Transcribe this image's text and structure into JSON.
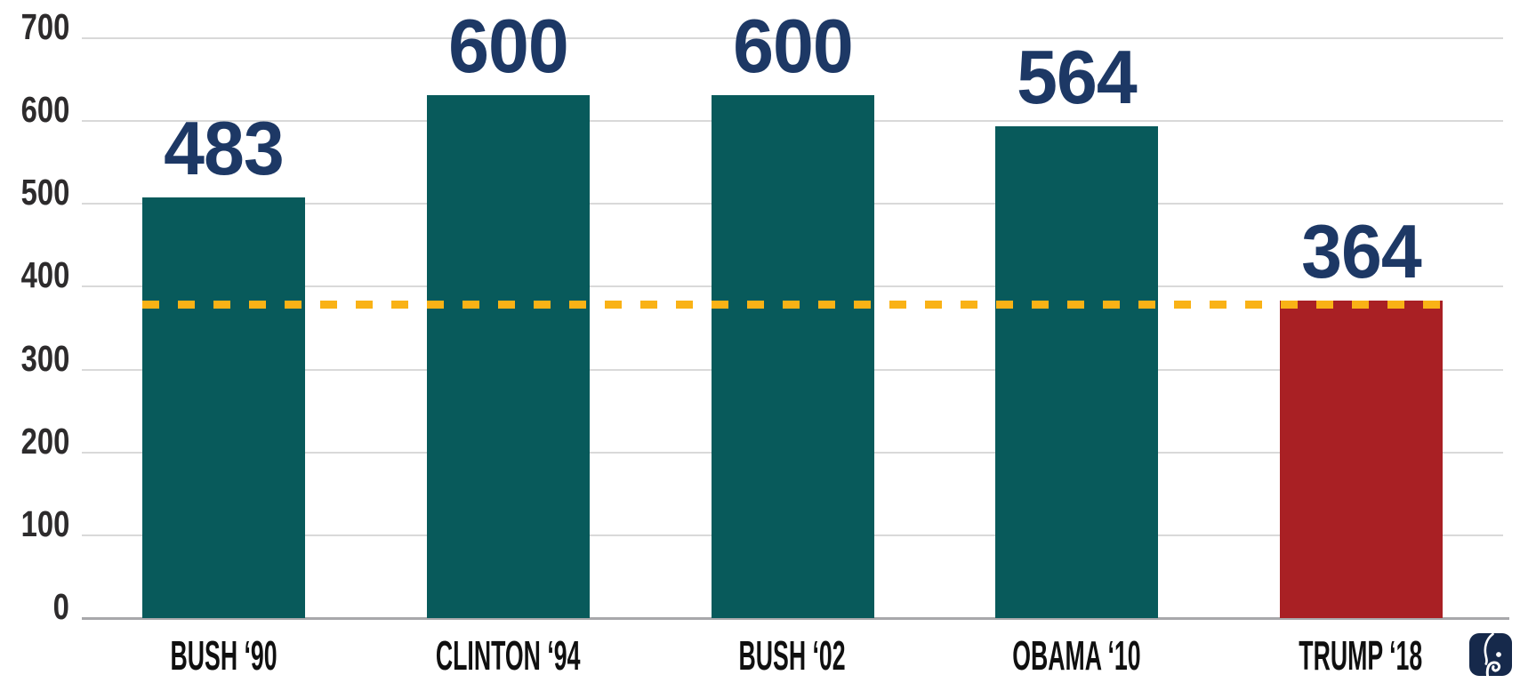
{
  "chart_data": {
    "type": "bar",
    "title": "",
    "xlabel": "",
    "ylabel": "",
    "categories": [
      "BUSH ‘90",
      "CLINTON ‘94",
      "BUSH ‘02",
      "OBAMA ‘10",
      "TRUMP ‘18"
    ],
    "values": [
      483,
      600,
      600,
      564,
      364
    ],
    "bar_colors": [
      "#085A5B",
      "#085A5B",
      "#085A5B",
      "#085A5B",
      "#A92024"
    ],
    "ylim": [
      0,
      700
    ],
    "y_ticks": [
      0,
      100,
      200,
      300,
      400,
      500,
      600,
      700
    ],
    "grid": true,
    "legend_position": "none",
    "reference_line": {
      "value": 364,
      "style": "dashed",
      "color": "#F9B216",
      "extent": "from left edge of first bar to right edge of last bar"
    }
  },
  "colors": {
    "value_label": "#1D3865",
    "axis_tick_label": "#2D2B2C",
    "category_label": "#101010",
    "gridline": "#D9D9D9",
    "baseline": "#A8A8AB",
    "background": "#FFFFFF",
    "logo_background": "#16294B",
    "logo_foreground": "#FFFFFF"
  },
  "logo": {
    "label": "elephant logo"
  }
}
